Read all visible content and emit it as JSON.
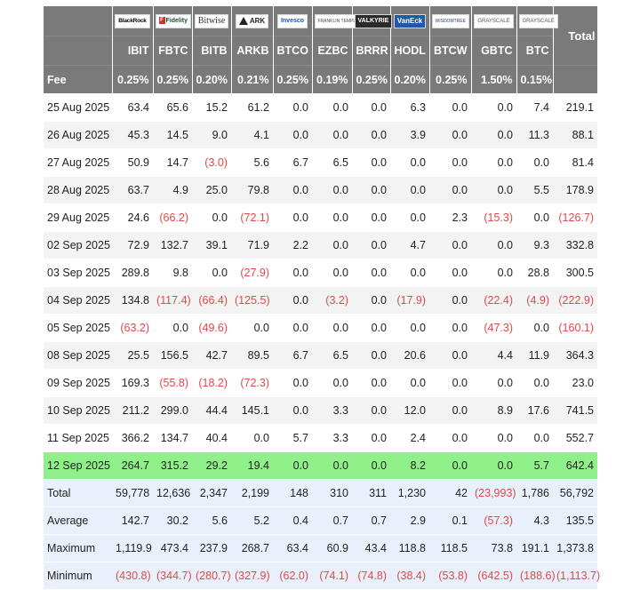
{
  "header": {
    "total_label": "Total",
    "fee_label": "Fee",
    "funds": [
      {
        "ticker": "IBIT",
        "fee": "0.25%",
        "logo_text": "BlackRock",
        "logo_icon": "blackrock-logo"
      },
      {
        "ticker": "FBTC",
        "fee": "0.25%",
        "logo_text": "Fidelity",
        "logo_icon": "fidelity-logo"
      },
      {
        "ticker": "BITB",
        "fee": "0.20%",
        "logo_text": "Bitwise",
        "logo_icon": "bitwise-logo"
      },
      {
        "ticker": "ARKB",
        "fee": "0.21%",
        "logo_text": "ARK",
        "logo_icon": "ark-logo"
      },
      {
        "ticker": "BTCO",
        "fee": "0.25%",
        "logo_text": "Invesco",
        "logo_icon": "invesco-logo"
      },
      {
        "ticker": "EZBC",
        "fee": "0.19%",
        "logo_text": "FRANKLIN TEMPLETON",
        "logo_icon": "franklin-logo"
      },
      {
        "ticker": "BRRR",
        "fee": "0.25%",
        "logo_text": "VALKYRIE",
        "logo_icon": "valkyrie-logo"
      },
      {
        "ticker": "HODL",
        "fee": "0.20%",
        "logo_text": "VanEck",
        "logo_icon": "vaneck-logo"
      },
      {
        "ticker": "BTCW",
        "fee": "0.25%",
        "logo_text": "WISDOMTREE",
        "logo_icon": "wisdomtree-logo"
      },
      {
        "ticker": "GBTC",
        "fee": "1.50%",
        "logo_text": "GRAYSCALE",
        "logo_icon": "grayscale-logo"
      },
      {
        "ticker": "BTC",
        "fee": "0.15%",
        "logo_text": "GRAYSCALE",
        "logo_icon": "grayscale-logo"
      }
    ]
  },
  "rows": [
    {
      "date": "25 Aug 2025",
      "values": [
        "63.4",
        "65.6",
        "15.2",
        "61.2",
        "0.0",
        "0.0",
        "0.0",
        "6.3",
        "0.0",
        "0.0",
        "7.4"
      ],
      "total": "219.1"
    },
    {
      "date": "26 Aug 2025",
      "values": [
        "45.3",
        "14.5",
        "9.0",
        "4.1",
        "0.0",
        "0.0",
        "0.0",
        "3.9",
        "0.0",
        "0.0",
        "11.3"
      ],
      "total": "88.1"
    },
    {
      "date": "27 Aug 2025",
      "values": [
        "50.9",
        "14.7",
        "(3.0)",
        "5.6",
        "6.7",
        "6.5",
        "0.0",
        "0.0",
        "0.0",
        "0.0",
        "0.0"
      ],
      "total": "81.4"
    },
    {
      "date": "28 Aug 2025",
      "values": [
        "63.7",
        "4.9",
        "25.0",
        "79.8",
        "0.0",
        "0.0",
        "0.0",
        "0.0",
        "0.0",
        "0.0",
        "5.5"
      ],
      "total": "178.9"
    },
    {
      "date": "29 Aug 2025",
      "values": [
        "24.6",
        "(66.2)",
        "0.0",
        "(72.1)",
        "0.0",
        "0.0",
        "0.0",
        "0.0",
        "2.3",
        "(15.3)",
        "0.0"
      ],
      "total": "(126.7)"
    },
    {
      "date": "02 Sep 2025",
      "values": [
        "72.9",
        "132.7",
        "39.1",
        "71.9",
        "2.2",
        "0.0",
        "0.0",
        "4.7",
        "0.0",
        "0.0",
        "9.3"
      ],
      "total": "332.8"
    },
    {
      "date": "03 Sep 2025",
      "values": [
        "289.8",
        "9.8",
        "0.0",
        "(27.9)",
        "0.0",
        "0.0",
        "0.0",
        "0.0",
        "0.0",
        "0.0",
        "28.8"
      ],
      "total": "300.5"
    },
    {
      "date": "04 Sep 2025",
      "values": [
        "134.8",
        "(117.4)",
        "(66.4)",
        "(125.5)",
        "0.0",
        "(3.2)",
        "0.0",
        "(17.9)",
        "0.0",
        "(22.4)",
        "(4.9)"
      ],
      "total": "(222.9)"
    },
    {
      "date": "05 Sep 2025",
      "values": [
        "(63.2)",
        "0.0",
        "(49.6)",
        "0.0",
        "0.0",
        "0.0",
        "0.0",
        "0.0",
        "0.0",
        "(47.3)",
        "0.0"
      ],
      "total": "(160.1)"
    },
    {
      "date": "08 Sep 2025",
      "values": [
        "25.5",
        "156.5",
        "42.7",
        "89.5",
        "6.7",
        "6.5",
        "0.0",
        "20.6",
        "0.0",
        "4.4",
        "11.9"
      ],
      "total": "364.3"
    },
    {
      "date": "09 Sep 2025",
      "values": [
        "169.3",
        "(55.8)",
        "(18.2)",
        "(72.3)",
        "0.0",
        "0.0",
        "0.0",
        "0.0",
        "0.0",
        "0.0",
        "0.0"
      ],
      "total": "23.0"
    },
    {
      "date": "10 Sep 2025",
      "values": [
        "211.2",
        "299.0",
        "44.4",
        "145.1",
        "0.0",
        "3.3",
        "0.0",
        "12.0",
        "0.0",
        "8.9",
        "17.6"
      ],
      "total": "741.5"
    },
    {
      "date": "11 Sep 2025",
      "values": [
        "366.2",
        "134.7",
        "40.4",
        "0.0",
        "5.7",
        "3.3",
        "0.0",
        "2.4",
        "0.0",
        "0.0",
        "0.0"
      ],
      "total": "552.7"
    },
    {
      "date": "12 Sep 2025",
      "values": [
        "264.7",
        "315.2",
        "29.2",
        "19.4",
        "0.0",
        "0.0",
        "0.0",
        "8.2",
        "0.0",
        "0.0",
        "5.7"
      ],
      "total": "642.4",
      "highlight": true
    }
  ],
  "summary": [
    {
      "label": "Total",
      "values": [
        "59,778",
        "12,636",
        "2,347",
        "2,199",
        "148",
        "310",
        "311",
        "1,230",
        "42",
        "(23,993)",
        "1,786"
      ],
      "total": "56,792"
    },
    {
      "label": "Average",
      "values": [
        "142.7",
        "30.2",
        "5.6",
        "5.2",
        "0.4",
        "0.7",
        "0.7",
        "2.9",
        "0.1",
        "(57.3)",
        "4.3"
      ],
      "total": "135.5"
    },
    {
      "label": "Maximum",
      "values": [
        "1,119.9",
        "473.4",
        "237.9",
        "268.7",
        "63.4",
        "60.9",
        "43.4",
        "118.8",
        "118.5",
        "73.8",
        "191.1"
      ],
      "total": "1,373.8"
    },
    {
      "label": "Minimum",
      "values": [
        "(430.8)",
        "(344.7)",
        "(280.7)",
        "(327.9)",
        "(62.0)",
        "(74.1)",
        "(74.8)",
        "(38.4)",
        "(53.8)",
        "(642.5)",
        "(188.6)"
      ],
      "total": "(1,113.7)"
    }
  ],
  "colors": {
    "header_bg": "#7a7a7a",
    "highlight_row": "#8ff08a",
    "summary_bg": "#eaf0fb",
    "negative": "#e04848"
  }
}
